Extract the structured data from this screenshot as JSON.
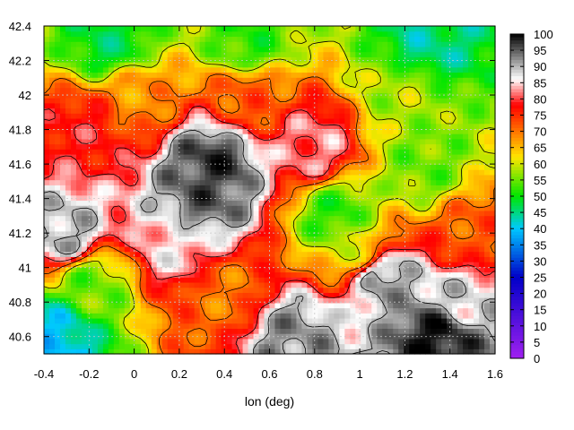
{
  "chart_data": {
    "type": "heatmap",
    "title": "",
    "xlabel": "lon (deg)",
    "ylabel": "",
    "xlim": [
      -0.4,
      1.6
    ],
    "ylim": [
      40.5,
      42.4
    ],
    "x_ticks": [
      "-0.4",
      "-0.2",
      "0",
      "0.2",
      "0.4",
      "0.6",
      "0.8",
      "1",
      "1.2",
      "1.4",
      "1.6"
    ],
    "y_ticks": [
      "40.6",
      "40.8",
      "41",
      "41.2",
      "41.4",
      "41.6",
      "41.8",
      "42",
      "42.2",
      "42.4"
    ],
    "grid": true,
    "colorbar": {
      "min": 0,
      "max": 100,
      "ticks": [
        "0",
        "5",
        "10",
        "15",
        "20",
        "25",
        "30",
        "35",
        "40",
        "45",
        "50",
        "55",
        "60",
        "65",
        "70",
        "75",
        "80",
        "85",
        "90",
        "95",
        "100"
      ],
      "colors": [
        "#a020f0",
        "#0000c8",
        "#00c8ff",
        "#00e600",
        "#ffe600",
        "#ff0000",
        "#ffffff",
        "#000000"
      ]
    },
    "regions": [
      {
        "lon": -0.1,
        "lat": 42.3,
        "value": 48
      },
      {
        "lon": 0.5,
        "lat": 42.3,
        "value": 52
      },
      {
        "lon": 1.3,
        "lat": 42.3,
        "value": 45
      },
      {
        "lon": 0.0,
        "lat": 42.0,
        "value": 68
      },
      {
        "lon": 0.5,
        "lat": 42.0,
        "value": 72
      },
      {
        "lon": 1.2,
        "lat": 42.0,
        "value": 58
      },
      {
        "lon": -0.2,
        "lat": 41.8,
        "value": 78
      },
      {
        "lon": 0.35,
        "lat": 41.6,
        "value": 97
      },
      {
        "lon": 0.8,
        "lat": 41.7,
        "value": 82
      },
      {
        "lon": 1.3,
        "lat": 41.6,
        "value": 55
      },
      {
        "lon": 0.3,
        "lat": 41.4,
        "value": 95
      },
      {
        "lon": 0.9,
        "lat": 41.3,
        "value": 52
      },
      {
        "lon": -0.3,
        "lat": 41.2,
        "value": 90
      },
      {
        "lon": 0.2,
        "lat": 41.15,
        "value": 85
      },
      {
        "lon": 1.0,
        "lat": 41.1,
        "value": 62
      },
      {
        "lon": 1.5,
        "lat": 41.2,
        "value": 72
      },
      {
        "lon": -0.2,
        "lat": 40.9,
        "value": 55
      },
      {
        "lon": 0.4,
        "lat": 40.85,
        "value": 70
      },
      {
        "lon": 1.1,
        "lat": 40.95,
        "value": 92
      },
      {
        "lon": 1.45,
        "lat": 40.8,
        "value": 88
      },
      {
        "lon": -0.35,
        "lat": 40.6,
        "value": 40
      },
      {
        "lon": 0.7,
        "lat": 40.6,
        "value": 92
      },
      {
        "lon": 1.35,
        "lat": 40.6,
        "value": 99
      }
    ],
    "contour_values": [
      10,
      60,
      70,
      80,
      90
    ]
  }
}
